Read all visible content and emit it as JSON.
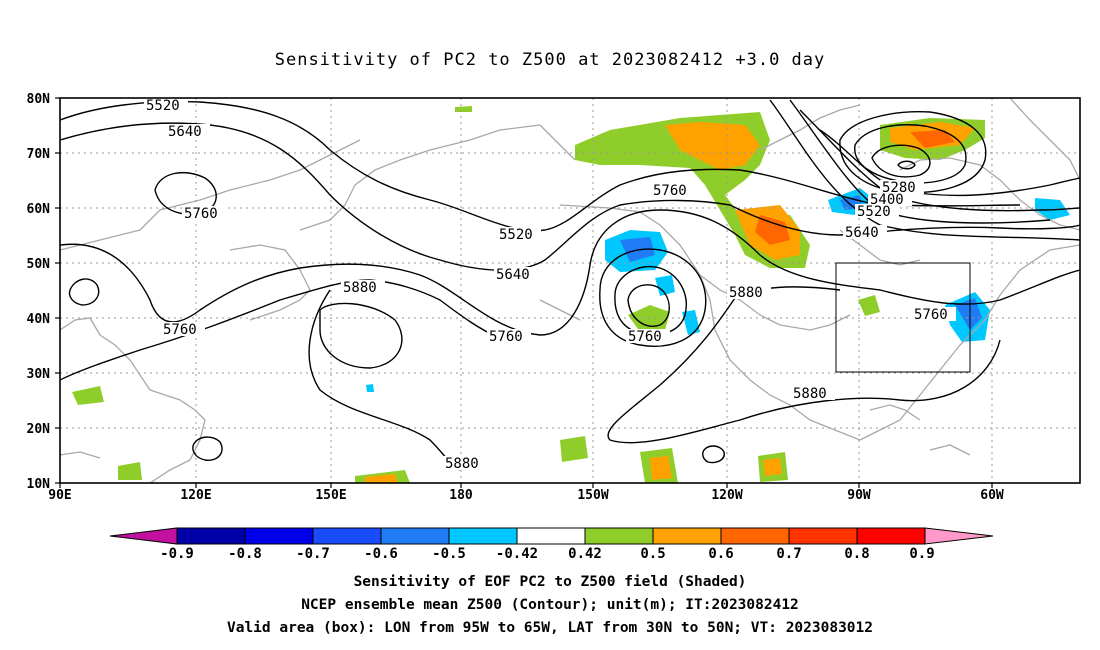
{
  "title": "Sensitivity of PC2 to Z500 at 2023082412 +3.0 day",
  "map": {
    "lat_ticks": [
      "80N",
      "70N",
      "60N",
      "50N",
      "40N",
      "30N",
      "20N",
      "10N"
    ],
    "lon_ticks": [
      "90E",
      "120E",
      "150E",
      "180",
      "150W",
      "120W",
      "90W",
      "60W"
    ],
    "contour_labels": [
      "5520",
      "5640",
      "5760",
      "5520",
      "5640",
      "5880",
      "5760",
      "5760",
      "5760",
      "5880",
      "5760",
      "5880",
      "5880",
      "5280",
      "5400",
      "5520",
      "5640",
      "5760"
    ],
    "box_label": "Valid area (box)"
  },
  "colorbar": {
    "labels": [
      "-0.9",
      "-0.8",
      "-0.7",
      "-0.6",
      "-0.5",
      "-0.42",
      "0.42",
      "0.5",
      "0.6",
      "0.7",
      "0.8",
      "0.9"
    ],
    "colors": [
      "#c4109e",
      "#0000a8",
      "#0000e8",
      "#1a4cff",
      "#1f7cf5",
      "#00c8ff",
      "#ffffff",
      "#8fce2a",
      "#ffa200",
      "#ff6600",
      "#ff3300",
      "#ff0000",
      "#ff99cc"
    ]
  },
  "captions": {
    "line1": "Sensitivity of EOF PC2 to Z500 field (Shaded)",
    "line2": "NCEP ensemble mean Z500 (Contour); unit(m); IT:2023082412",
    "line3": "Valid area (box): LON from 95W to 65W, LAT from 30N to 50N; VT: 2023083012"
  }
}
